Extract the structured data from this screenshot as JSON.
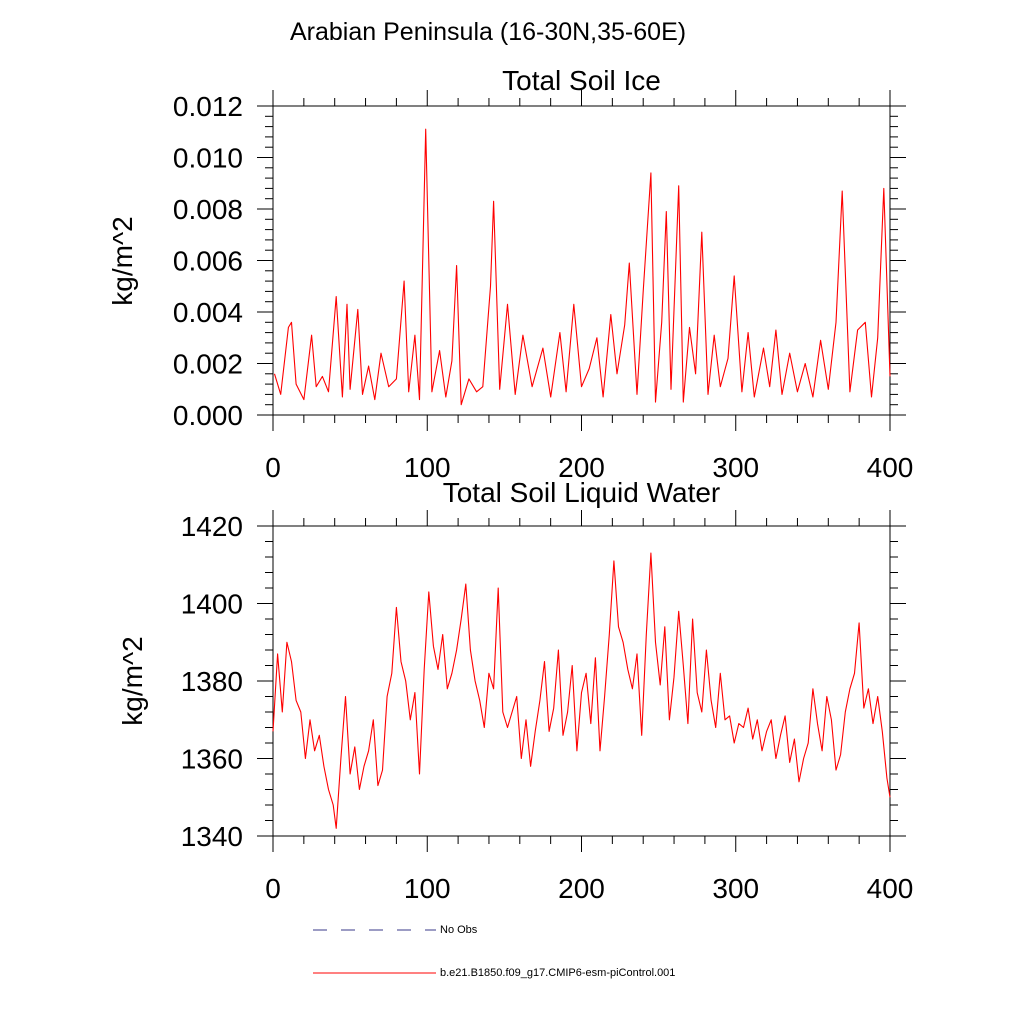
{
  "page_title": "Arabian Peninsula (16-30N,35-60E)",
  "legend": {
    "items": [
      {
        "label": "No Obs",
        "color": "#3a3a8a",
        "style": "dashed"
      },
      {
        "label": "b.e21.B1850.f09_g17.CMIP6-esm-piControl.001",
        "color": "#ff0000",
        "style": "solid"
      }
    ]
  },
  "chart_data": [
    {
      "type": "line",
      "title": "Total Soil Ice",
      "xlabel": "",
      "ylabel": "kg/m^2",
      "xlim": [
        0,
        400
      ],
      "ylim": [
        0.0,
        0.012
      ],
      "xticks": [
        0,
        100,
        200,
        300,
        400
      ],
      "xtick_labels": [
        "0",
        "100",
        "200",
        "300",
        "400"
      ],
      "yticks": [
        0.0,
        0.002,
        0.004,
        0.006,
        0.008,
        0.01,
        0.012
      ],
      "ytick_labels": [
        "0.000",
        "0.002",
        "0.004",
        "0.006",
        "0.008",
        "0.010",
        "0.012"
      ],
      "series": [
        {
          "name": "b.e21.B1850.f09_g17.CMIP6-esm-piControl.001",
          "color": "#ff0000",
          "x": [
            1,
            5,
            10,
            12,
            15,
            20,
            25,
            28,
            32,
            36,
            41,
            45,
            48,
            50,
            55,
            58,
            62,
            66,
            70,
            75,
            80,
            85,
            88,
            92,
            95,
            99,
            103,
            108,
            112,
            116,
            119,
            122,
            127,
            132,
            136,
            141,
            143,
            147,
            152,
            157,
            162,
            168,
            175,
            180,
            186,
            190,
            195,
            200,
            205,
            210,
            214,
            219,
            223,
            228,
            231,
            236,
            240,
            245,
            248,
            252,
            255,
            258,
            263,
            266,
            270,
            274,
            278,
            282,
            286,
            290,
            295,
            299,
            304,
            308,
            312,
            318,
            322,
            326,
            330,
            335,
            340,
            345,
            350,
            355,
            360,
            365,
            369,
            374,
            379,
            384,
            388,
            392,
            396,
            400
          ],
          "values": [
            0.0016,
            0.0008,
            0.0034,
            0.0036,
            0.0012,
            0.0006,
            0.0031,
            0.0011,
            0.0015,
            0.0009,
            0.0046,
            0.0007,
            0.0043,
            0.001,
            0.0041,
            0.0008,
            0.0019,
            0.0006,
            0.0024,
            0.0011,
            0.0014,
            0.0052,
            0.0009,
            0.0031,
            0.0006,
            0.0111,
            0.0009,
            0.0025,
            0.0007,
            0.0021,
            0.0058,
            0.0004,
            0.0014,
            0.0009,
            0.0011,
            0.005,
            0.0083,
            0.001,
            0.0043,
            0.0008,
            0.0031,
            0.0011,
            0.0026,
            0.0007,
            0.0032,
            0.0009,
            0.0043,
            0.0011,
            0.0018,
            0.003,
            0.0007,
            0.0039,
            0.0016,
            0.0035,
            0.0059,
            0.0008,
            0.0048,
            0.0094,
            0.0005,
            0.0036,
            0.0079,
            0.001,
            0.0089,
            0.0005,
            0.0034,
            0.0016,
            0.0071,
            0.0008,
            0.0031,
            0.0011,
            0.0022,
            0.0054,
            0.0009,
            0.0032,
            0.0007,
            0.0026,
            0.0011,
            0.0033,
            0.0008,
            0.0024,
            0.0009,
            0.002,
            0.0007,
            0.0029,
            0.001,
            0.0036,
            0.0087,
            0.0009,
            0.0033,
            0.0036,
            0.0007,
            0.003,
            0.0088,
            0.0015
          ]
        }
      ]
    },
    {
      "type": "line",
      "title": "Total Soil Liquid Water",
      "xlabel": "",
      "ylabel": "kg/m^2",
      "xlim": [
        0,
        400
      ],
      "ylim": [
        1340,
        1420
      ],
      "xticks": [
        0,
        100,
        200,
        300,
        400
      ],
      "xtick_labels": [
        "0",
        "100",
        "200",
        "300",
        "400"
      ],
      "yticks": [
        1340,
        1360,
        1380,
        1400,
        1420
      ],
      "ytick_labels": [
        "1340",
        "1360",
        "1380",
        "1400",
        "1420"
      ],
      "series": [
        {
          "name": "b.e21.B1850.f09_g17.CMIP6-esm-piControl.001",
          "color": "#ff0000",
          "x": [
            0,
            3,
            6,
            9,
            12,
            15,
            18,
            21,
            24,
            27,
            30,
            33,
            36,
            39,
            41,
            44,
            47,
            50,
            53,
            56,
            59,
            62,
            65,
            68,
            71,
            74,
            77,
            80,
            83,
            86,
            89,
            92,
            95,
            98,
            101,
            104,
            107,
            110,
            113,
            116,
            119,
            122,
            125,
            128,
            131,
            134,
            137,
            140,
            143,
            146,
            149,
            152,
            155,
            158,
            161,
            164,
            167,
            170,
            173,
            176,
            179,
            182,
            185,
            188,
            191,
            194,
            197,
            200,
            203,
            206,
            209,
            212,
            215,
            218,
            221,
            224,
            227,
            230,
            233,
            236,
            239,
            242,
            245,
            248,
            251,
            254,
            257,
            260,
            263,
            266,
            269,
            272,
            275,
            278,
            281,
            284,
            287,
            290,
            293,
            296,
            299,
            302,
            305,
            308,
            311,
            314,
            317,
            320,
            323,
            326,
            329,
            332,
            335,
            338,
            341,
            344,
            347,
            350,
            353,
            356,
            359,
            362,
            365,
            368,
            371,
            374,
            377,
            380,
            383,
            386,
            389,
            392,
            395,
            398,
            400
          ],
          "values": [
            1367,
            1387,
            1372,
            1390,
            1385,
            1375,
            1372,
            1360,
            1370,
            1362,
            1366,
            1358,
            1352,
            1348,
            1342,
            1360,
            1376,
            1356,
            1363,
            1352,
            1358,
            1362,
            1370,
            1353,
            1357,
            1376,
            1382,
            1399,
            1385,
            1380,
            1370,
            1377,
            1356,
            1383,
            1403,
            1389,
            1383,
            1392,
            1378,
            1382,
            1388,
            1396,
            1405,
            1388,
            1380,
            1375,
            1368,
            1382,
            1378,
            1404,
            1372,
            1368,
            1372,
            1376,
            1360,
            1370,
            1358,
            1367,
            1375,
            1385,
            1367,
            1373,
            1388,
            1366,
            1372,
            1384,
            1362,
            1377,
            1382,
            1369,
            1386,
            1362,
            1376,
            1392,
            1411,
            1394,
            1390,
            1383,
            1378,
            1387,
            1366,
            1392,
            1413,
            1390,
            1379,
            1394,
            1370,
            1381,
            1398,
            1384,
            1369,
            1396,
            1377,
            1372,
            1388,
            1375,
            1368,
            1382,
            1370,
            1371,
            1364,
            1369,
            1368,
            1373,
            1365,
            1370,
            1362,
            1367,
            1370,
            1360,
            1366,
            1371,
            1359,
            1365,
            1354,
            1360,
            1364,
            1378,
            1369,
            1362,
            1376,
            1370,
            1357,
            1361,
            1372,
            1378,
            1382,
            1395,
            1373,
            1378,
            1369,
            1376,
            1367,
            1355,
            1350
          ]
        }
      ]
    }
  ]
}
